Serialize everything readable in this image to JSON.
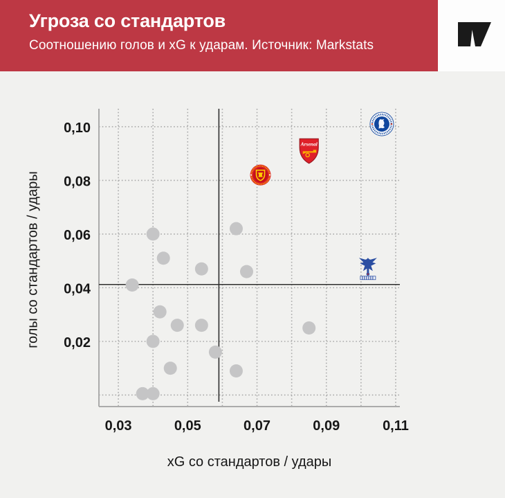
{
  "header": {
    "title": "Угроза со стандартов",
    "subtitle": "Соотношению голов и xG к ударам. Источник: Markstats",
    "banner_color": "#bd3844",
    "logo_color": "#1a1a1a"
  },
  "chart_data": {
    "type": "scatter",
    "title": "Угроза со стандартов",
    "subtitle": "Соотношению голов и xG к ударам. Источник: Markstats",
    "source": "Markstats",
    "xlabel": "xG со стандартов / удары",
    "ylabel": "голы со стандартов / удары",
    "xlim": [
      0.0244,
      0.1112
    ],
    "ylim": [
      -0.0043,
      0.1067
    ],
    "x_ticks": [
      0.03,
      0.05,
      0.07,
      0.09,
      0.11
    ],
    "x_tick_labels": [
      "0,03",
      "0,05",
      "0,07",
      "0,09",
      "0,11"
    ],
    "y_ticks": [
      0.02,
      0.04,
      0.06,
      0.08,
      0.1
    ],
    "y_tick_labels": [
      "0,02",
      "0,04",
      "0,06",
      "0,08",
      "0,10"
    ],
    "x_gridlines": {
      "start": 0.03,
      "end": 0.11,
      "step": 0.01
    },
    "y_gridlines": {
      "start": 0.0,
      "end": 0.1,
      "step": 0.02
    },
    "grid": true,
    "legend": false,
    "reference_lines": {
      "x": 0.059,
      "y": 0.0412
    },
    "point_color": "#c5c5c6",
    "point_radius": 9.5,
    "points": [
      {
        "x": 0.064,
        "y": 0.062
      },
      {
        "x": 0.04,
        "y": 0.06
      },
      {
        "x": 0.043,
        "y": 0.051
      },
      {
        "x": 0.054,
        "y": 0.047
      },
      {
        "x": 0.067,
        "y": 0.046
      },
      {
        "x": 0.034,
        "y": 0.041
      },
      {
        "x": 0.042,
        "y": 0.031
      },
      {
        "x": 0.047,
        "y": 0.026
      },
      {
        "x": 0.054,
        "y": 0.026
      },
      {
        "x": 0.085,
        "y": 0.025
      },
      {
        "x": 0.04,
        "y": 0.02
      },
      {
        "x": 0.058,
        "y": 0.016
      },
      {
        "x": 0.045,
        "y": 0.01
      },
      {
        "x": 0.064,
        "y": 0.009
      },
      {
        "x": 0.037,
        "y": 0.0005
      },
      {
        "x": 0.04,
        "y": 0.0005
      }
    ],
    "logo_points": [
      {
        "id": "chelsea",
        "team": "Chelsea",
        "x": 0.106,
        "y": 0.101
      },
      {
        "id": "arsenal",
        "team": "Arsenal",
        "x": 0.085,
        "y": 0.091
      },
      {
        "id": "man-united",
        "team": "Manchester United",
        "x": 0.071,
        "y": 0.082
      },
      {
        "id": "crystal-palace",
        "team": "Crystal Palace",
        "x": 0.102,
        "y": 0.047
      }
    ]
  }
}
